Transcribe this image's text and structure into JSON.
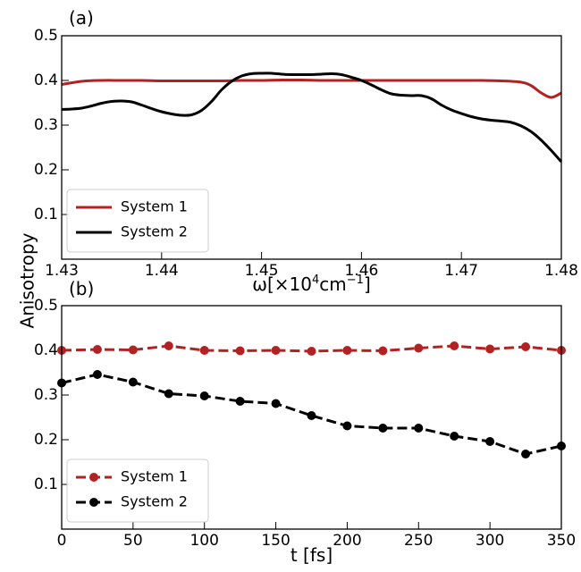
{
  "ylabel": "Anisotropy",
  "chart_data": [
    {
      "type": "line",
      "panel_label": "(a)",
      "xlabel_parts": [
        "ω[×10",
        "4",
        "cm",
        "−1",
        "]"
      ],
      "xlim": [
        1.43,
        1.48
      ],
      "ylim": [
        0,
        0.5
      ],
      "x_ticks": [
        1.43,
        1.44,
        1.45,
        1.46,
        1.47,
        1.48
      ],
      "x_tick_labels": [
        "1.43",
        "1.44",
        "1.45",
        "1.46",
        "1.47",
        "1.48"
      ],
      "y_ticks": [
        0.1,
        0.2,
        0.3,
        0.4,
        0.5
      ],
      "y_tick_labels": [
        "0.1",
        "0.2",
        "0.3",
        "0.4",
        "0.5"
      ],
      "grid": false,
      "legend_position": "lower-left",
      "series": [
        {
          "name": "System 1",
          "color": "#b22222",
          "style": "solid",
          "x": [
            1.43,
            1.432,
            1.434,
            1.436,
            1.438,
            1.44,
            1.442,
            1.444,
            1.446,
            1.448,
            1.45,
            1.452,
            1.454,
            1.456,
            1.458,
            1.46,
            1.462,
            1.464,
            1.466,
            1.468,
            1.47,
            1.472,
            1.474,
            1.476,
            1.477,
            1.478,
            1.479,
            1.48
          ],
          "y": [
            0.391,
            0.398,
            0.4,
            0.4,
            0.4,
            0.399,
            0.399,
            0.399,
            0.399,
            0.4,
            0.4,
            0.401,
            0.401,
            0.4,
            0.4,
            0.4,
            0.4,
            0.4,
            0.4,
            0.4,
            0.4,
            0.4,
            0.399,
            0.396,
            0.388,
            0.372,
            0.362,
            0.372
          ]
        },
        {
          "name": "System 2",
          "color": "#000000",
          "style": "solid",
          "x": [
            1.43,
            1.431,
            1.432,
            1.433,
            1.434,
            1.435,
            1.436,
            1.437,
            1.438,
            1.439,
            1.44,
            1.441,
            1.442,
            1.443,
            1.444,
            1.445,
            1.446,
            1.447,
            1.448,
            1.449,
            1.45,
            1.451,
            1.452,
            1.453,
            1.454,
            1.455,
            1.456,
            1.457,
            1.458,
            1.459,
            1.46,
            1.461,
            1.462,
            1.463,
            1.464,
            1.465,
            1.466,
            1.467,
            1.468,
            1.469,
            1.47,
            1.471,
            1.472,
            1.473,
            1.474,
            1.475,
            1.476,
            1.477,
            1.478,
            1.479,
            1.48
          ],
          "y": [
            0.335,
            0.336,
            0.338,
            0.343,
            0.349,
            0.353,
            0.354,
            0.352,
            0.345,
            0.337,
            0.33,
            0.325,
            0.322,
            0.323,
            0.333,
            0.353,
            0.379,
            0.398,
            0.41,
            0.415,
            0.416,
            0.416,
            0.414,
            0.413,
            0.413,
            0.413,
            0.414,
            0.415,
            0.413,
            0.407,
            0.4,
            0.39,
            0.379,
            0.37,
            0.367,
            0.366,
            0.366,
            0.359,
            0.345,
            0.334,
            0.326,
            0.319,
            0.314,
            0.311,
            0.309,
            0.306,
            0.298,
            0.285,
            0.266,
            0.243,
            0.218
          ]
        }
      ]
    },
    {
      "type": "line",
      "panel_label": "(b)",
      "xlabel": "t [fs]",
      "xlim": [
        0,
        350
      ],
      "ylim": [
        0,
        0.5
      ],
      "x_ticks": [
        0,
        50,
        100,
        150,
        200,
        250,
        300,
        350
      ],
      "x_tick_labels": [
        "0",
        "50",
        "100",
        "150",
        "200",
        "250",
        "300",
        "350"
      ],
      "y_ticks": [
        0.1,
        0.2,
        0.3,
        0.4,
        0.5
      ],
      "y_tick_labels": [
        "0.1",
        "0.2",
        "0.3",
        "0.4",
        "0.5"
      ],
      "grid": false,
      "legend_position": "lower-left",
      "series": [
        {
          "name": "System 1",
          "color": "#b22222",
          "style": "dashed",
          "marker": "circle",
          "x": [
            0,
            25,
            50,
            75,
            100,
            125,
            150,
            175,
            200,
            225,
            250,
            275,
            300,
            325,
            350
          ],
          "y": [
            0.4,
            0.402,
            0.401,
            0.41,
            0.4,
            0.399,
            0.4,
            0.398,
            0.4,
            0.399,
            0.405,
            0.41,
            0.403,
            0.408,
            0.4
          ]
        },
        {
          "name": "System 2",
          "color": "#000000",
          "style": "dashed",
          "marker": "circle",
          "x": [
            0,
            25,
            50,
            75,
            100,
            125,
            150,
            175,
            200,
            225,
            250,
            275,
            300,
            325,
            350
          ],
          "y": [
            0.327,
            0.346,
            0.329,
            0.303,
            0.298,
            0.286,
            0.281,
            0.254,
            0.231,
            0.226,
            0.226,
            0.208,
            0.196,
            0.168,
            0.186
          ]
        }
      ]
    }
  ]
}
